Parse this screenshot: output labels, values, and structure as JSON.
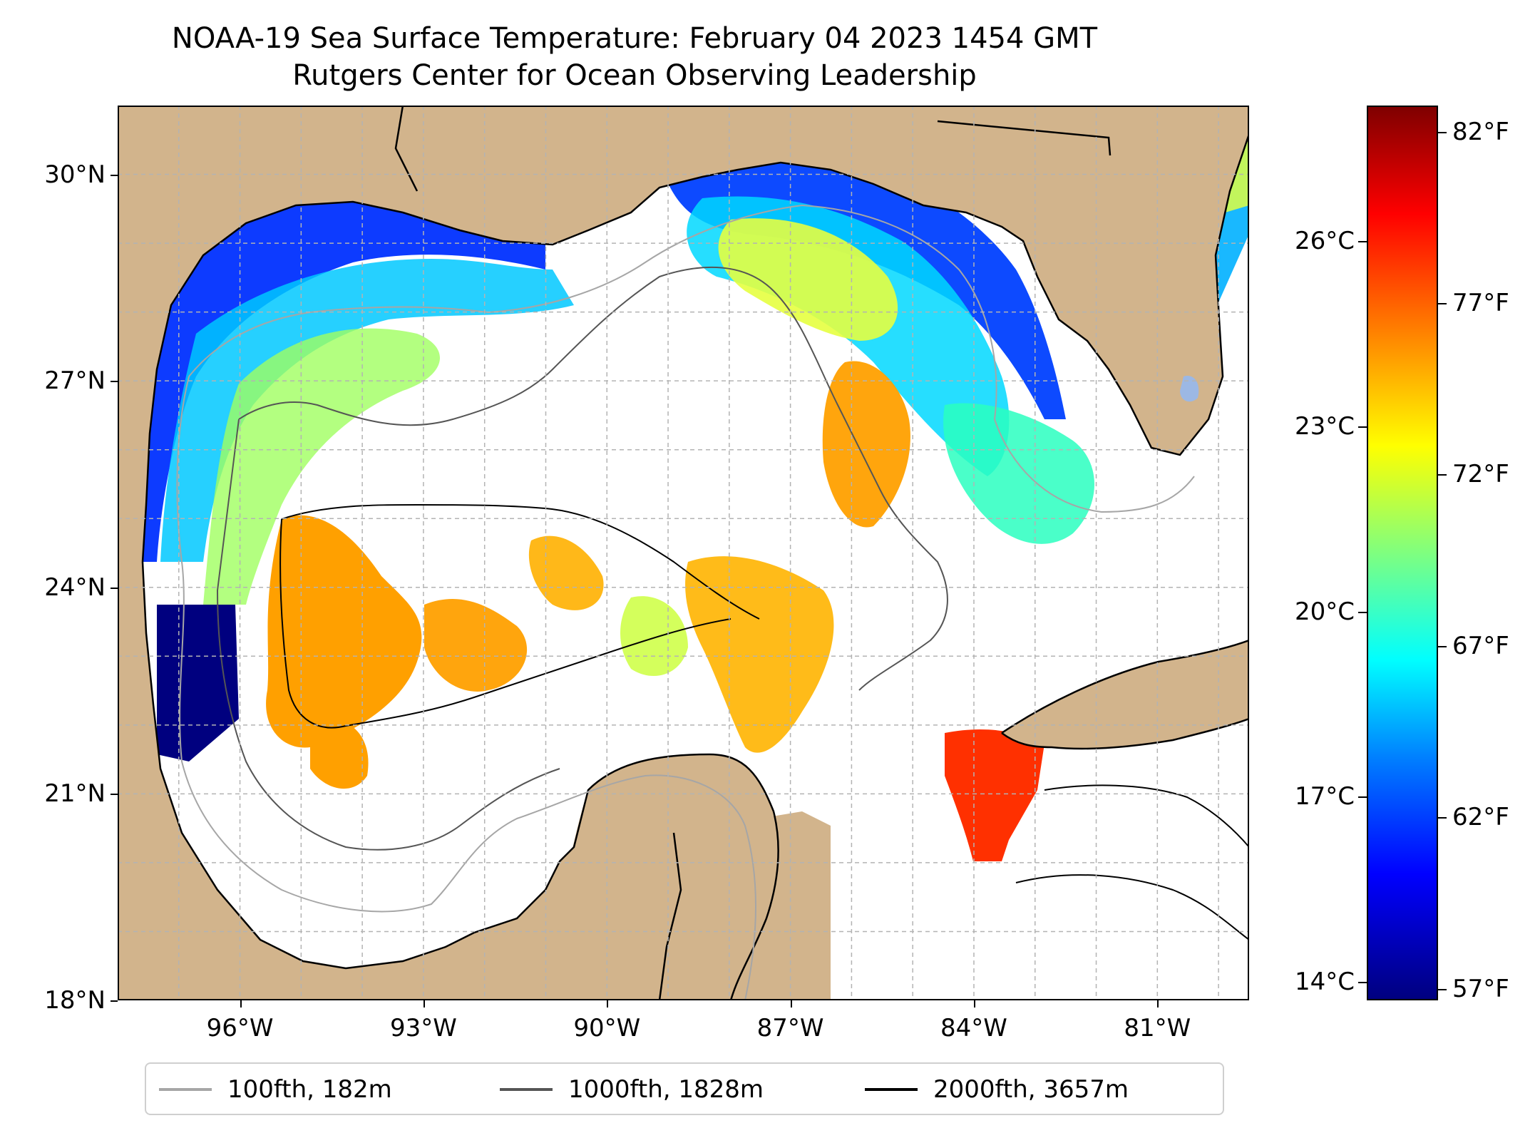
{
  "title": {
    "line1": "NOAA-19 Sea Surface Temperature: February 04 2023 1454 GMT",
    "line2": "Rutgers Center for Ocean Observing Leadership"
  },
  "map": {
    "projection": "lat-lon",
    "lon_range": [
      -98.0,
      -79.5
    ],
    "lat_range": [
      18.0,
      31.0
    ],
    "gridlines": true,
    "land_color": "#d2b48c",
    "lat_ticks": [
      "30°N",
      "27°N",
      "24°N",
      "21°N",
      "18°N"
    ],
    "lon_ticks": [
      "96°W",
      "93°W",
      "90°W",
      "87°W",
      "84°W",
      "81°W"
    ],
    "lat_tick_values": [
      30,
      27,
      24,
      21,
      18
    ],
    "lon_tick_values": [
      -96,
      -93,
      -90,
      -87,
      -84,
      -81
    ]
  },
  "legend": {
    "items": [
      {
        "label": "100fth, 182m",
        "color": "#a6a6a6"
      },
      {
        "label": "1000fth, 1828m",
        "color": "#555555"
      },
      {
        "label": "2000fth, 3657m",
        "color": "#000000"
      }
    ]
  },
  "colorbar": {
    "colormap": "jet",
    "celsius_ticks": [
      "26°C",
      "23°C",
      "20°C",
      "17°C",
      "14°C"
    ],
    "celsius_values": [
      26,
      23,
      20,
      17,
      14
    ],
    "fahrenheit_ticks": [
      "82°F",
      "77°F",
      "72°F",
      "67°F",
      "62°F",
      "57°F"
    ],
    "fahrenheit_values": [
      82,
      77,
      72,
      67,
      62,
      57
    ],
    "range_c": [
      13.7,
      28.2
    ]
  },
  "sst_palette": {
    "very_cold": "#00007f",
    "cold": "#0020ff",
    "cool": "#00a0ff",
    "mild": "#4dffb0",
    "warmish": "#c8ff3c",
    "warm": "#ffe000",
    "hot": "#ffa000",
    "very_hot": "#ff3000"
  }
}
